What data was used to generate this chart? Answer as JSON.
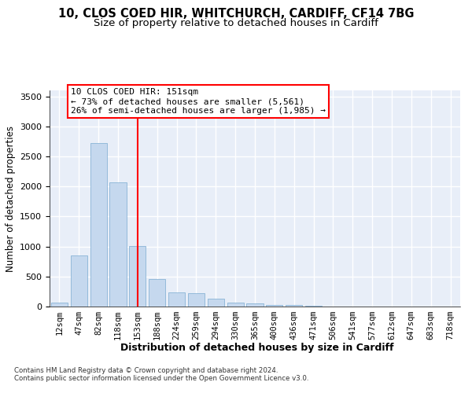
{
  "title_line1": "10, CLOS COED HIR, WHITCHURCH, CARDIFF, CF14 7BG",
  "title_line2": "Size of property relative to detached houses in Cardiff",
  "xlabel": "Distribution of detached houses by size in Cardiff",
  "ylabel": "Number of detached properties",
  "categories": [
    "12sqm",
    "47sqm",
    "82sqm",
    "118sqm",
    "153sqm",
    "188sqm",
    "224sqm",
    "259sqm",
    "294sqm",
    "330sqm",
    "365sqm",
    "400sqm",
    "436sqm",
    "471sqm",
    "506sqm",
    "541sqm",
    "577sqm",
    "612sqm",
    "647sqm",
    "683sqm",
    "718sqm"
  ],
  "values": [
    60,
    850,
    2720,
    2070,
    1010,
    460,
    230,
    225,
    130,
    60,
    50,
    30,
    25,
    10,
    5,
    3,
    2,
    2,
    1,
    1,
    1
  ],
  "bar_color": "#c5d8ee",
  "bar_edgecolor": "#7aaad0",
  "vline_x_index": 4,
  "vline_color": "red",
  "annotation_line1": "10 CLOS COED HIR: 151sqm",
  "annotation_line2": "← 73% of detached houses are smaller (5,561)",
  "annotation_line3": "26% of semi-detached houses are larger (1,985) →",
  "footnote_line1": "Contains HM Land Registry data © Crown copyright and database right 2024.",
  "footnote_line2": "Contains public sector information licensed under the Open Government Licence v3.0.",
  "ylim": [
    0,
    3600
  ],
  "yticks": [
    0,
    500,
    1000,
    1500,
    2000,
    2500,
    3000,
    3500
  ],
  "plot_bg": "#e8eef8",
  "grid_color": "#ffffff",
  "title_fontsize": 10.5,
  "subtitle_fontsize": 9.5,
  "ylabel_fontsize": 8.5,
  "xlabel_fontsize": 9,
  "tick_fontsize": 7.5,
  "ann_fontsize": 8,
  "footnote_fontsize": 6.2
}
